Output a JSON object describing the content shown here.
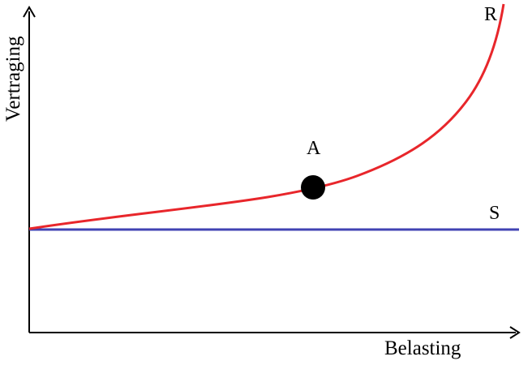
{
  "axes": {
    "x_label": "Belasting",
    "y_label": "Vertraging"
  },
  "curves": {
    "r": {
      "label": "R",
      "color": "#e8262b"
    },
    "s": {
      "label": "S",
      "color": "#4043b3"
    }
  },
  "point": {
    "label": "A",
    "color": "#000000"
  },
  "axis_color": "#000000"
}
